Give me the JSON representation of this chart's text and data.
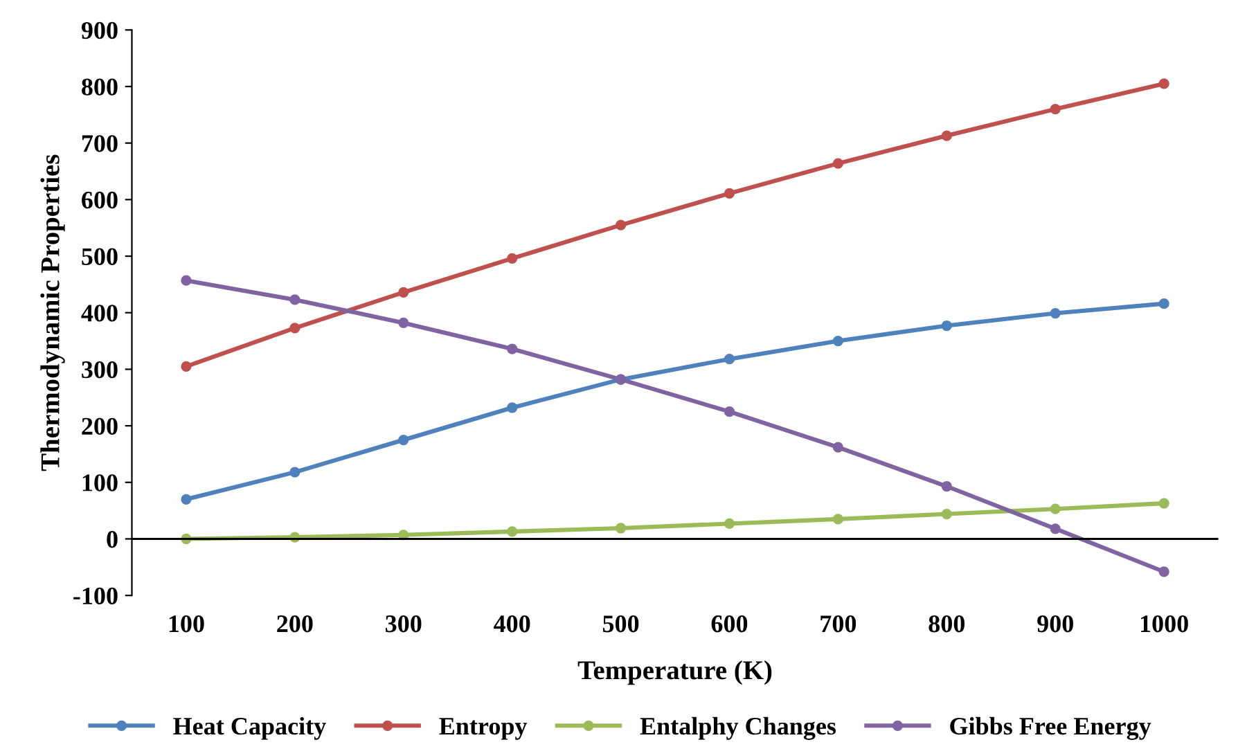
{
  "chart_data": {
    "type": "line",
    "xlabel": "Temperature (K)",
    "ylabel": "Thermodynamic Properties",
    "categories": [
      "100",
      "200",
      "300",
      "400",
      "500",
      "600",
      "700",
      "800",
      "900",
      "1000"
    ],
    "series": [
      {
        "name": "Heat Capacity",
        "color": "#4f81bd",
        "values": [
          70,
          118,
          175,
          232,
          282,
          318,
          350,
          377,
          399,
          416
        ]
      },
      {
        "name": "Entropy",
        "color": "#c0504d",
        "values": [
          305,
          373,
          436,
          496,
          555,
          611,
          664,
          713,
          760,
          805
        ]
      },
      {
        "name": "Entalphy Changes",
        "color": "#9bbb59",
        "values": [
          0,
          3,
          7,
          13,
          19,
          27,
          35,
          44,
          53,
          63
        ]
      },
      {
        "name": "Gibbs Free Energy",
        "color": "#8064a2",
        "values": [
          457,
          423,
          382,
          336,
          282,
          225,
          162,
          93,
          18,
          -58
        ]
      }
    ],
    "ylim": [
      -100,
      900
    ],
    "yticks": [
      -100,
      0,
      100,
      200,
      300,
      400,
      500,
      600,
      700,
      800,
      900
    ],
    "grid": false,
    "ref_lines": [
      {
        "axis": "y",
        "value": 0,
        "color": "#000000"
      }
    ],
    "legend": "bottom",
    "marker": "circle",
    "line_style": "solid"
  }
}
